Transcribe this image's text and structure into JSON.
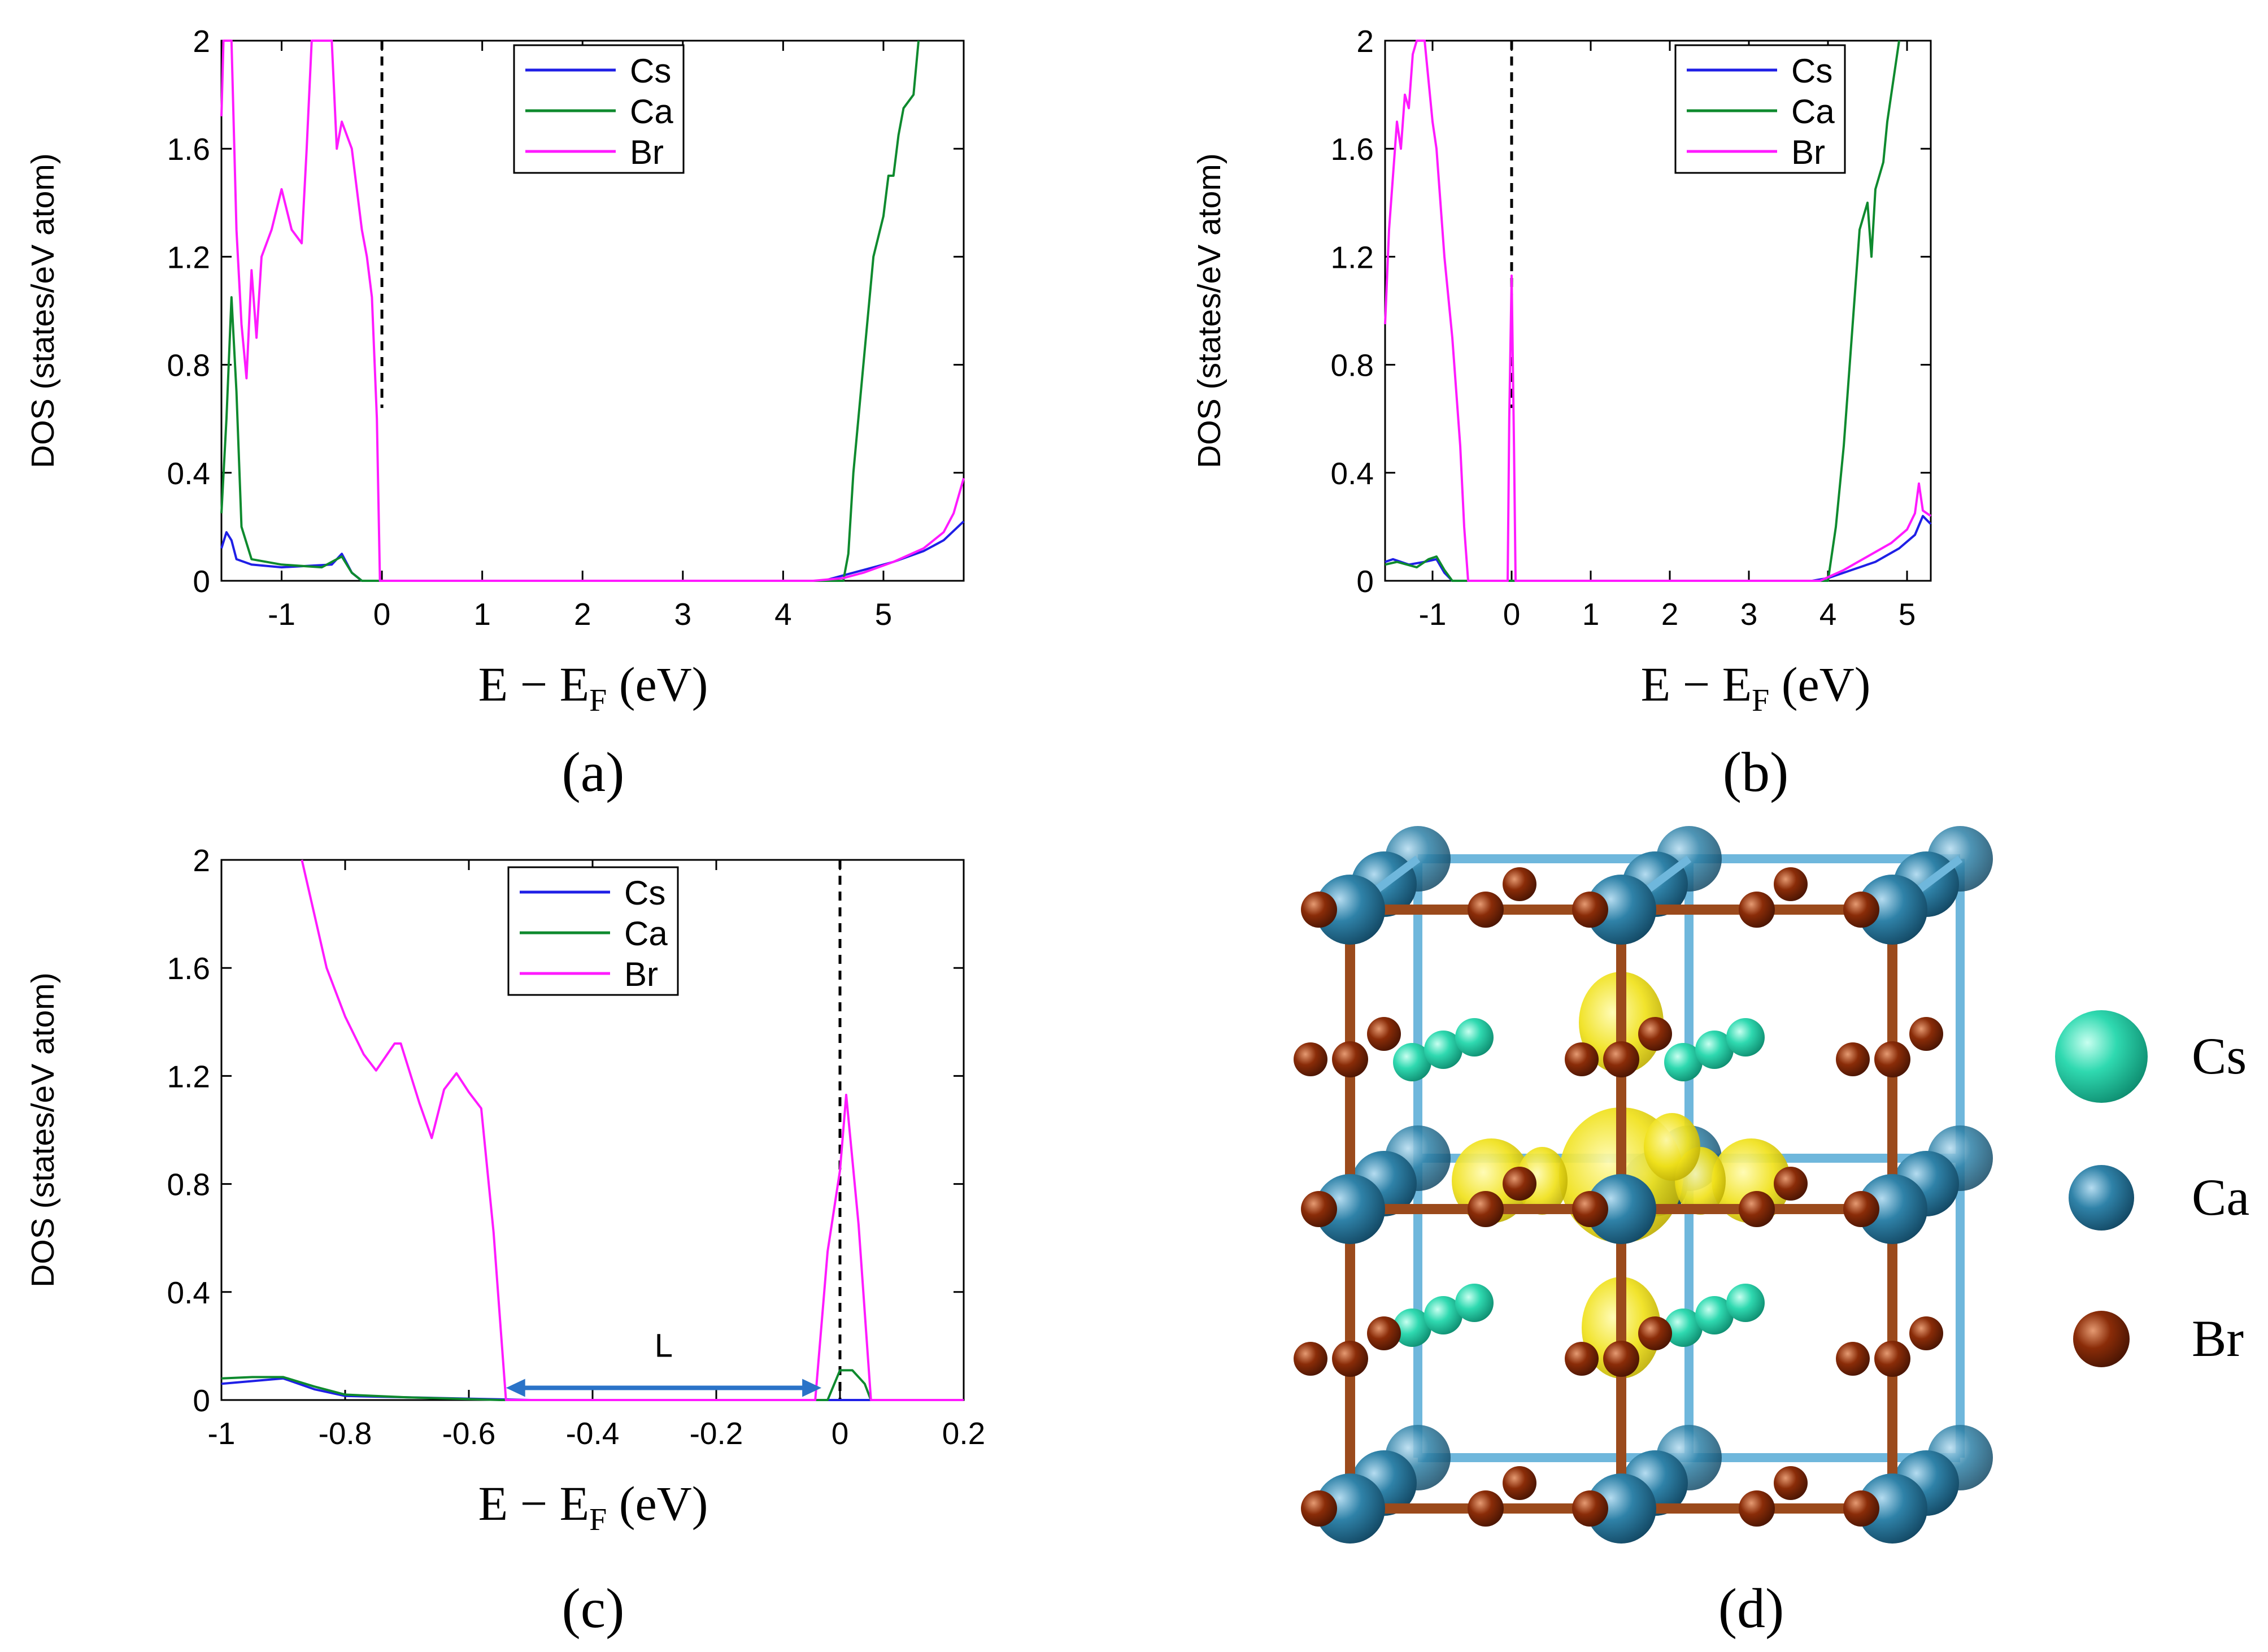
{
  "colors": {
    "Cs": "#1f1fe6",
    "Ca": "#0e8a2e",
    "Br": "#ff1aff",
    "arrow": "#2a73c8",
    "fermi": "#000000",
    "atom_cs": "#2fd9b0",
    "atom_ca": "#2f82a8",
    "atom_br": "#8a2c08",
    "isosurface": "#f0e11a",
    "bond_ca": "#6fb7dc",
    "bond_br": "#9b4a1c"
  },
  "chart_data": [
    {
      "id": "a",
      "type": "line",
      "caption": "(a)",
      "xlabel_main": "E − E",
      "xlabel_sub": "F",
      "xlabel_unit": "(eV)",
      "ylabel": "DOS (states/eV atom)",
      "xlim": [
        -1.6,
        5.8
      ],
      "ylim": [
        0,
        2
      ],
      "xticks": [
        -1,
        0,
        1,
        2,
        3,
        4,
        5
      ],
      "yticks": [
        0,
        0.4,
        0.8,
        1.2,
        1.6,
        2
      ],
      "ytick_labels": [
        "0",
        "0.4",
        "0.8",
        "1.2",
        "1.6",
        "2"
      ],
      "fermi": 0,
      "legend": [
        "Cs",
        "Ca",
        "Br"
      ],
      "series": [
        {
          "name": "Cs",
          "points": [
            [
              -1.6,
              0.12
            ],
            [
              -1.55,
              0.18
            ],
            [
              -1.5,
              0.15
            ],
            [
              -1.45,
              0.08
            ],
            [
              -1.3,
              0.06
            ],
            [
              -1.0,
              0.05
            ],
            [
              -0.5,
              0.06
            ],
            [
              -0.4,
              0.1
            ],
            [
              -0.3,
              0.03
            ],
            [
              -0.2,
              0.0
            ],
            [
              4.4,
              0.0
            ],
            [
              4.6,
              0.02
            ],
            [
              4.8,
              0.04
            ],
            [
              5.1,
              0.07
            ],
            [
              5.4,
              0.11
            ],
            [
              5.6,
              0.15
            ],
            [
              5.8,
              0.22
            ]
          ]
        },
        {
          "name": "Ca",
          "points": [
            [
              -1.6,
              0.25
            ],
            [
              -1.55,
              0.6
            ],
            [
              -1.5,
              1.05
            ],
            [
              -1.45,
              0.7
            ],
            [
              -1.4,
              0.2
            ],
            [
              -1.3,
              0.08
            ],
            [
              -1.0,
              0.06
            ],
            [
              -0.6,
              0.05
            ],
            [
              -0.4,
              0.09
            ],
            [
              -0.3,
              0.03
            ],
            [
              -0.2,
              0.0
            ],
            [
              4.6,
              0.0
            ],
            [
              4.65,
              0.1
            ],
            [
              4.7,
              0.4
            ],
            [
              4.8,
              0.8
            ],
            [
              4.9,
              1.2
            ],
            [
              5.0,
              1.35
            ],
            [
              5.05,
              1.5
            ],
            [
              5.1,
              1.5
            ],
            [
              5.15,
              1.65
            ],
            [
              5.2,
              1.75
            ],
            [
              5.3,
              1.8
            ],
            [
              5.35,
              2.0
            ]
          ]
        },
        {
          "name": "Br",
          "points": [
            [
              -1.6,
              1.72
            ],
            [
              -1.58,
              2.0
            ],
            [
              -1.5,
              2.0
            ],
            [
              -1.45,
              1.3
            ],
            [
              -1.4,
              0.95
            ],
            [
              -1.35,
              0.75
            ],
            [
              -1.3,
              1.15
            ],
            [
              -1.25,
              0.9
            ],
            [
              -1.2,
              1.2
            ],
            [
              -1.1,
              1.3
            ],
            [
              -1.0,
              1.45
            ],
            [
              -0.9,
              1.3
            ],
            [
              -0.8,
              1.25
            ],
            [
              -0.75,
              1.6
            ],
            [
              -0.7,
              2.0
            ],
            [
              -0.5,
              2.0
            ],
            [
              -0.45,
              1.6
            ],
            [
              -0.4,
              1.7
            ],
            [
              -0.3,
              1.6
            ],
            [
              -0.2,
              1.3
            ],
            [
              -0.15,
              1.2
            ],
            [
              -0.1,
              1.05
            ],
            [
              -0.05,
              0.6
            ],
            [
              -0.02,
              0.0
            ],
            [
              4.3,
              0.0
            ],
            [
              4.6,
              0.01
            ],
            [
              4.8,
              0.03
            ],
            [
              5.1,
              0.07
            ],
            [
              5.4,
              0.12
            ],
            [
              5.6,
              0.18
            ],
            [
              5.7,
              0.25
            ],
            [
              5.8,
              0.38
            ]
          ]
        }
      ]
    },
    {
      "id": "b",
      "type": "line",
      "caption": "(b)",
      "xlabel_main": "E − E",
      "xlabel_sub": "F",
      "xlabel_unit": "(eV)",
      "ylabel": "DOS (states/eV atom)",
      "xlim": [
        -1.6,
        5.3
      ],
      "ylim": [
        0,
        2
      ],
      "xticks": [
        -1,
        0,
        1,
        2,
        3,
        4,
        5
      ],
      "yticks": [
        0,
        0.4,
        0.8,
        1.2,
        1.6,
        2
      ],
      "ytick_labels": [
        "0",
        "0.4",
        "0.8",
        "1.2",
        "1.6",
        "2"
      ],
      "fermi": 0,
      "legend": [
        "Cs",
        "Ca",
        "Br"
      ],
      "series": [
        {
          "name": "Cs",
          "points": [
            [
              -1.6,
              0.07
            ],
            [
              -1.5,
              0.08
            ],
            [
              -1.3,
              0.06
            ],
            [
              -1.1,
              0.07
            ],
            [
              -0.95,
              0.08
            ],
            [
              -0.85,
              0.03
            ],
            [
              -0.75,
              0.0
            ],
            [
              3.8,
              0.0
            ],
            [
              4.0,
              0.01
            ],
            [
              4.3,
              0.04
            ],
            [
              4.6,
              0.07
            ],
            [
              4.9,
              0.12
            ],
            [
              5.1,
              0.17
            ],
            [
              5.2,
              0.24
            ],
            [
              5.3,
              0.21
            ]
          ]
        },
        {
          "name": "Ca",
          "points": [
            [
              -1.6,
              0.06
            ],
            [
              -1.45,
              0.07
            ],
            [
              -1.2,
              0.05
            ],
            [
              -1.05,
              0.08
            ],
            [
              -0.95,
              0.09
            ],
            [
              -0.85,
              0.04
            ],
            [
              -0.75,
              0.0
            ],
            [
              4.0,
              0.0
            ],
            [
              4.1,
              0.2
            ],
            [
              4.2,
              0.5
            ],
            [
              4.3,
              0.9
            ],
            [
              4.4,
              1.3
            ],
            [
              4.5,
              1.4
            ],
            [
              4.55,
              1.2
            ],
            [
              4.6,
              1.45
            ],
            [
              4.7,
              1.55
            ],
            [
              4.75,
              1.7
            ],
            [
              4.8,
              1.8
            ],
            [
              4.9,
              2.0
            ]
          ]
        },
        {
          "name": "Br",
          "points": [
            [
              -1.6,
              0.95
            ],
            [
              -1.55,
              1.3
            ],
            [
              -1.5,
              1.5
            ],
            [
              -1.45,
              1.7
            ],
            [
              -1.4,
              1.6
            ],
            [
              -1.35,
              1.8
            ],
            [
              -1.3,
              1.75
            ],
            [
              -1.25,
              1.95
            ],
            [
              -1.2,
              2.0
            ],
            [
              -1.1,
              2.0
            ],
            [
              -1.05,
              1.85
            ],
            [
              -1.0,
              1.7
            ],
            [
              -0.95,
              1.6
            ],
            [
              -0.9,
              1.4
            ],
            [
              -0.85,
              1.2
            ],
            [
              -0.8,
              1.05
            ],
            [
              -0.75,
              0.9
            ],
            [
              -0.7,
              0.7
            ],
            [
              -0.65,
              0.5
            ],
            [
              -0.6,
              0.2
            ],
            [
              -0.55,
              0.0
            ],
            [
              -0.05,
              0.0
            ],
            [
              -0.03,
              0.6
            ],
            [
              0.0,
              1.13
            ],
            [
              0.03,
              0.5
            ],
            [
              0.05,
              0.0
            ],
            [
              3.9,
              0.0
            ],
            [
              4.2,
              0.04
            ],
            [
              4.5,
              0.09
            ],
            [
              4.8,
              0.14
            ],
            [
              5.0,
              0.19
            ],
            [
              5.1,
              0.25
            ],
            [
              5.15,
              0.36
            ],
            [
              5.2,
              0.26
            ],
            [
              5.3,
              0.24
            ]
          ]
        }
      ]
    },
    {
      "id": "c",
      "type": "line",
      "caption": "(c)",
      "xlabel_main": "E − E",
      "xlabel_sub": "F",
      "xlabel_unit": "(eV)",
      "ylabel": "DOS (states/eV atom)",
      "xlim": [
        -1,
        0.2
      ],
      "ylim": [
        0,
        2
      ],
      "xticks": [
        -1,
        -0.8,
        -0.6,
        -0.4,
        -0.2,
        0,
        0.2
      ],
      "yticks": [
        0,
        0.4,
        0.8,
        1.2,
        1.6,
        2
      ],
      "xtick_labels": [
        "-1",
        "-0.8",
        "-0.6",
        "-0.4",
        "-0.2",
        "0",
        "0.2"
      ],
      "ytick_labels": [
        "0",
        "0.4",
        "0.8",
        "1.2",
        "1.6",
        "2"
      ],
      "fermi": 0,
      "legend": [
        "Cs",
        "Ca",
        "Br"
      ],
      "annotation": {
        "label": "L",
        "from": -0.54,
        "to": -0.03,
        "y": 0.045
      },
      "series": [
        {
          "name": "Cs",
          "points": [
            [
              -1.0,
              0.06
            ],
            [
              -0.95,
              0.07
            ],
            [
              -0.9,
              0.08
            ],
            [
              -0.85,
              0.04
            ],
            [
              -0.8,
              0.015
            ],
            [
              -0.6,
              0.005
            ],
            [
              -0.5,
              0.0
            ],
            [
              0.05,
              0.0
            ],
            [
              0.2,
              0.0
            ]
          ]
        },
        {
          "name": "Ca",
          "points": [
            [
              -1.0,
              0.08
            ],
            [
              -0.95,
              0.085
            ],
            [
              -0.9,
              0.085
            ],
            [
              -0.85,
              0.05
            ],
            [
              -0.8,
              0.02
            ],
            [
              -0.7,
              0.01
            ],
            [
              -0.55,
              0.0
            ],
            [
              -0.02,
              0.0
            ],
            [
              0.0,
              0.11
            ],
            [
              0.02,
              0.11
            ],
            [
              0.04,
              0.06
            ],
            [
              0.05,
              0.0
            ],
            [
              0.2,
              0.0
            ]
          ]
        },
        {
          "name": "Br",
          "points": [
            [
              -0.87,
              2.0
            ],
            [
              -0.83,
              1.6
            ],
            [
              -0.8,
              1.42
            ],
            [
              -0.77,
              1.28
            ],
            [
              -0.75,
              1.22
            ],
            [
              -0.72,
              1.32
            ],
            [
              -0.71,
              1.32
            ],
            [
              -0.68,
              1.1
            ],
            [
              -0.66,
              0.97
            ],
            [
              -0.64,
              1.15
            ],
            [
              -0.62,
              1.21
            ],
            [
              -0.6,
              1.14
            ],
            [
              -0.58,
              1.08
            ],
            [
              -0.56,
              0.62
            ],
            [
              -0.54,
              0.0
            ],
            [
              -0.04,
              0.0
            ],
            [
              -0.02,
              0.55
            ],
            [
              0.0,
              0.85
            ],
            [
              0.01,
              1.13
            ],
            [
              0.03,
              0.65
            ],
            [
              0.05,
              0.0
            ],
            [
              0.2,
              0.0
            ]
          ]
        }
      ]
    }
  ],
  "panel_d": {
    "caption": "(d)",
    "legend": [
      {
        "label": "Cs",
        "color": "#2fd9b0"
      },
      {
        "label": "Ca",
        "color": "#2f82a8"
      },
      {
        "label": "Br",
        "color": "#8a2c08"
      }
    ]
  }
}
